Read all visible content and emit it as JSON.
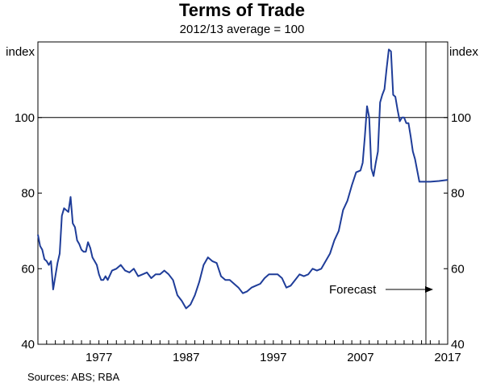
{
  "chart_data": {
    "type": "line",
    "title": "Terms of Trade",
    "subtitle": "2012/13 average = 100",
    "ylabel_left": "index",
    "ylabel_right": "index",
    "ylim": [
      40,
      120
    ],
    "yticks": [
      40,
      60,
      80,
      100
    ],
    "xlim": [
      1970,
      2017
    ],
    "xticks": [
      1977,
      1987,
      1997,
      2007,
      2017
    ],
    "reference_line": 100,
    "forecast_start": 2014.5,
    "annotation": "Forecast",
    "source": "Sources:   ABS; RBA",
    "series": [
      {
        "name": "Terms of trade",
        "color": "#1f3d99",
        "x": [
          1970.0,
          1970.25,
          1970.5,
          1970.75,
          1971.0,
          1971.25,
          1971.5,
          1971.75,
          1972.0,
          1972.25,
          1972.5,
          1972.75,
          1973.0,
          1973.25,
          1973.5,
          1973.75,
          1974.0,
          1974.25,
          1974.5,
          1974.75,
          1975.0,
          1975.25,
          1975.5,
          1975.75,
          1976.0,
          1976.25,
          1976.5,
          1976.75,
          1977.0,
          1977.25,
          1977.5,
          1977.75,
          1978.0,
          1978.5,
          1979.0,
          1979.5,
          1980.0,
          1980.5,
          1981.0,
          1981.5,
          1982.0,
          1982.5,
          1983.0,
          1983.5,
          1984.0,
          1984.5,
          1985.0,
          1985.5,
          1986.0,
          1986.5,
          1987.0,
          1987.5,
          1988.0,
          1988.5,
          1989.0,
          1989.5,
          1990.0,
          1990.5,
          1991.0,
          1991.5,
          1992.0,
          1992.5,
          1993.0,
          1993.5,
          1994.0,
          1994.5,
          1995.0,
          1995.5,
          1996.0,
          1996.5,
          1997.0,
          1997.5,
          1998.0,
          1998.5,
          1999.0,
          1999.5,
          2000.0,
          2000.5,
          2001.0,
          2001.5,
          2002.0,
          2002.5,
          2003.0,
          2003.5,
          2004.0,
          2004.5,
          2005.0,
          2005.5,
          2006.0,
          2006.5,
          2007.0,
          2007.25,
          2007.5,
          2007.75,
          2008.0,
          2008.25,
          2008.5,
          2008.75,
          2009.0,
          2009.25,
          2009.5,
          2009.75,
          2010.0,
          2010.25,
          2010.5,
          2010.75,
          2011.0,
          2011.25,
          2011.5,
          2011.75,
          2012.0,
          2012.25,
          2012.5,
          2012.75,
          2013.0,
          2013.25,
          2013.5,
          2013.75,
          2014.0,
          2014.25,
          2014.5,
          2014.75,
          2015.0,
          2016.0,
          2017.0
        ],
        "values": [
          69.0,
          66.0,
          65.0,
          62.5,
          62.0,
          61.0,
          62.0,
          54.5,
          58.0,
          61.5,
          64.0,
          74.0,
          76.0,
          75.5,
          75.0,
          79.0,
          72.0,
          71.0,
          67.5,
          66.5,
          65.0,
          64.5,
          64.5,
          67.0,
          65.5,
          63.0,
          62.0,
          61.0,
          58.5,
          57.0,
          57.0,
          58.0,
          57.0,
          59.5,
          60.0,
          61.0,
          59.5,
          59.0,
          60.0,
          58.0,
          58.5,
          59.0,
          57.5,
          58.5,
          58.5,
          59.5,
          58.5,
          57.0,
          53.0,
          51.5,
          49.5,
          50.5,
          53.0,
          56.5,
          61.0,
          63.0,
          62.0,
          61.5,
          58.0,
          57.0,
          57.0,
          56.0,
          55.0,
          53.5,
          54.0,
          55.0,
          55.5,
          56.0,
          57.5,
          58.5,
          58.5,
          58.5,
          57.5,
          55.0,
          55.5,
          57.0,
          58.5,
          58.0,
          58.5,
          60.0,
          59.5,
          60.0,
          62.0,
          64.0,
          67.5,
          70.0,
          75.5,
          78.0,
          82.0,
          85.5,
          86.0,
          88.0,
          95.0,
          103.0,
          100.0,
          86.5,
          84.5,
          88.0,
          91.0,
          104.0,
          106.0,
          107.5,
          113.0,
          118.0,
          117.5,
          106.0,
          105.5,
          102.0,
          99.0,
          100.0,
          100.0,
          98.5,
          98.5,
          95.0,
          91.0,
          89.0,
          86.0,
          83.0,
          83.0,
          83.0,
          83.0,
          83.0,
          83.0,
          83.2,
          83.5
        ]
      }
    ]
  }
}
